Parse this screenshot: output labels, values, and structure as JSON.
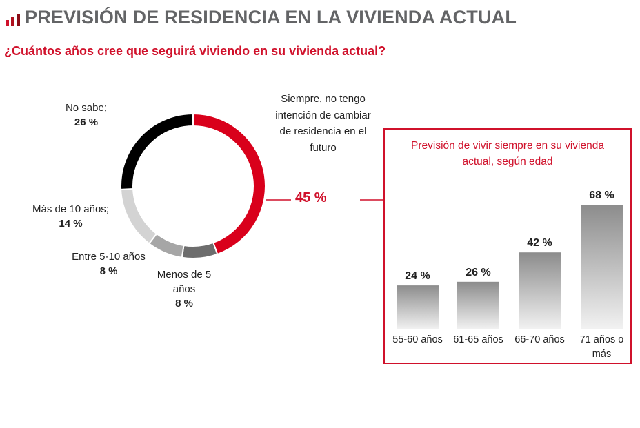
{
  "title": "PREVISIÓN DE RESIDENCIA EN LA VIVIENDA ACTUAL",
  "subtitle": "¿Cuántos años cree que seguirá viviendo en su vivienda actual?",
  "chart_data": [
    {
      "type": "pie",
      "donut": true,
      "slices": [
        {
          "label": "Siempre, no tengo intención de cambiar de residencia en el futuro",
          "value": 45,
          "value_label": "45 %",
          "color": "#d9001b"
        },
        {
          "label": "Menos de 5 años",
          "value": 8,
          "value_label": "8 %",
          "color": "#6d6d6d"
        },
        {
          "label": "Entre 5-10 años",
          "value": 8,
          "value_label": "8 %",
          "color": "#a6a6a6"
        },
        {
          "label": "Más de 10 años;",
          "value": 14,
          "value_label": "14 %",
          "color": "#d3d3d3"
        },
        {
          "label": "No sabe;",
          "value": 26,
          "value_label": "26 %",
          "color": "#000000"
        }
      ]
    },
    {
      "type": "bar",
      "title": "Previsión de vivir siempre en su vivienda actual, según edad",
      "categories": [
        "55-60 años",
        "61-65 años",
        "66-70 años",
        "71 años o más"
      ],
      "values": [
        24,
        26,
        42,
        68
      ],
      "value_labels": [
        "24 %",
        "26 %",
        "42 %",
        "68 %"
      ],
      "ylim": [
        0,
        68
      ],
      "grid": false
    }
  ]
}
